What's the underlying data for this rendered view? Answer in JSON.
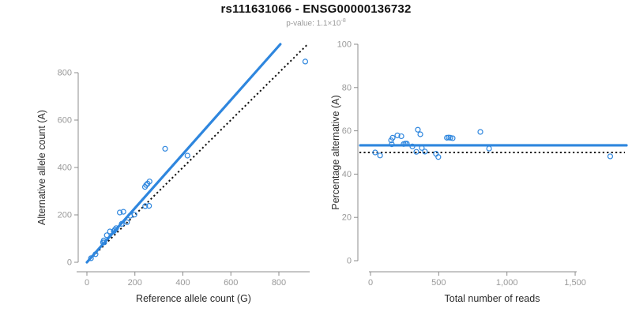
{
  "header": {
    "title": "rs111631066 - ENSG00000136732",
    "subtitle": {
      "prefix": "p-value: 1.1×10",
      "exponent": "-8"
    }
  },
  "colors": {
    "accent_blue": "#2E86DE",
    "dotted_black": "#111111",
    "axis_gray": "#8c8c8c",
    "tick_label_gray": "#999999",
    "axis_title_dark": "#2b2b2b"
  },
  "chart_data": [
    {
      "type": "scatter",
      "panel": "left",
      "xlabel": "Reference allele count (G)",
      "ylabel": "Alternative allele count (A)",
      "x_ticks": [
        0,
        200,
        400,
        600,
        800
      ],
      "x_tick_labels": [
        "0",
        "200",
        "400",
        "600",
        "800"
      ],
      "y_ticks": [
        0,
        200,
        400,
        600,
        800
      ],
      "y_tick_labels": [
        "0",
        "200",
        "400",
        "600",
        "800"
      ],
      "xlim": [
        0,
        928
      ],
      "ylim": [
        0,
        920
      ],
      "grid": false,
      "legend": "none",
      "points_format": "[reference allele count G, alternative allele count A]",
      "points": [
        [
          17,
          17
        ],
        [
          36,
          34
        ],
        [
          67,
          84
        ],
        [
          70,
          92
        ],
        [
          72,
          84
        ],
        [
          83,
          114
        ],
        [
          96,
          130
        ],
        [
          112,
          131
        ],
        [
          117,
          138
        ],
        [
          122,
          144
        ],
        [
          145,
          162
        ],
        [
          167,
          169
        ],
        [
          137,
          210
        ],
        [
          152,
          213
        ],
        [
          180,
          196
        ],
        [
          198,
          201
        ],
        [
          243,
          237
        ],
        [
          259,
          238
        ],
        [
          242,
          318
        ],
        [
          247,
          326
        ],
        [
          253,
          332
        ],
        [
          261,
          341
        ],
        [
          326,
          479
        ],
        [
          419,
          450
        ],
        [
          910,
          847
        ]
      ],
      "lines": [
        {
          "name": "identity-line",
          "style": "dotted",
          "slope": 1
        },
        {
          "name": "fit-line",
          "style": "solid",
          "slope_pct": 53.3
        }
      ]
    },
    {
      "type": "scatter",
      "panel": "right",
      "xlabel": "Total number of reads",
      "ylabel": "Percentage alternative (A)",
      "x_ticks": [
        0,
        500,
        1000,
        1500
      ],
      "x_tick_labels": [
        "0",
        "500",
        "1,000",
        "1,500"
      ],
      "y_ticks": [
        0,
        20,
        40,
        60,
        80,
        100
      ],
      "y_tick_labels": [
        "0",
        "20",
        "40",
        "60",
        "80",
        "100"
      ],
      "xlim": [
        0,
        1880
      ],
      "ylim": [
        0,
        100
      ],
      "grid": false,
      "legend": "none",
      "points_format": "[total number of reads, percentage alternative A]",
      "points": [
        [
          34,
          50.0
        ],
        [
          70,
          48.6
        ],
        [
          151,
          55.6
        ],
        [
          162,
          56.8
        ],
        [
          156,
          53.8
        ],
        [
          197,
          57.9
        ],
        [
          226,
          57.5
        ],
        [
          243,
          53.9
        ],
        [
          255,
          54.1
        ],
        [
          266,
          54.1
        ],
        [
          307,
          52.8
        ],
        [
          336,
          50.3
        ],
        [
          347,
          60.5
        ],
        [
          365,
          58.4
        ],
        [
          376,
          52.1
        ],
        [
          399,
          50.4
        ],
        [
          480,
          49.4
        ],
        [
          497,
          47.9
        ],
        [
          560,
          56.8
        ],
        [
          573,
          56.9
        ],
        [
          585,
          56.8
        ],
        [
          602,
          56.6
        ],
        [
          805,
          59.5
        ],
        [
          869,
          51.8
        ],
        [
          1757,
          48.2
        ]
      ],
      "lines": [
        {
          "name": "expected-line",
          "style": "dotted",
          "value": 50
        },
        {
          "name": "mean-line",
          "style": "solid",
          "value": 53.3
        }
      ]
    }
  ]
}
